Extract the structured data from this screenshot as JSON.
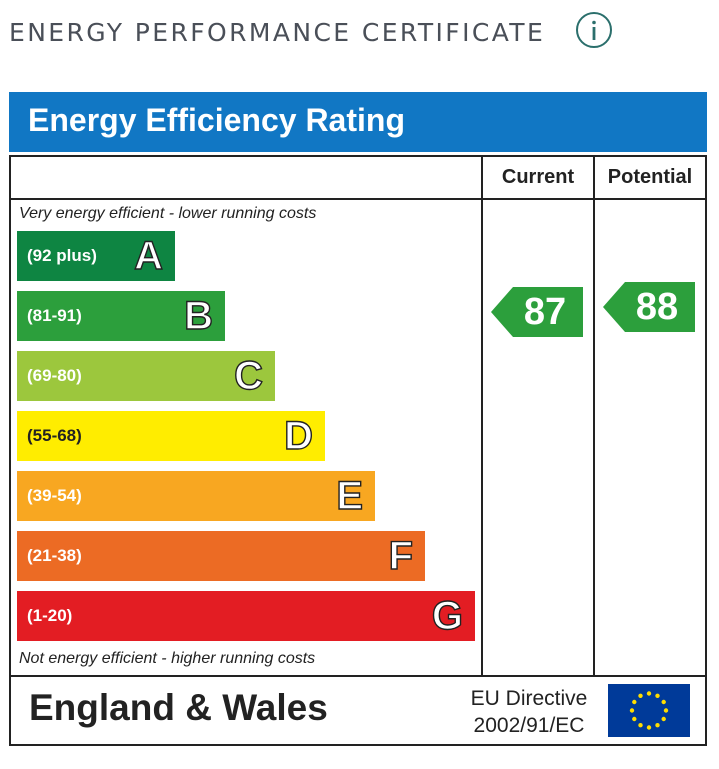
{
  "header": {
    "title": "ENERGY PERFORMANCE CERTIFICATE",
    "info_icon": "info-icon"
  },
  "epc": {
    "banner_title": "Energy Efficiency Rating",
    "columns": {
      "current": "Current",
      "potential": "Potential"
    },
    "top_note": "Very energy efficient - lower running costs",
    "bottom_note": "Not energy efficient - higher running costs",
    "bands": [
      {
        "range": "(92 plus)",
        "letter": "A",
        "color": "#0e8542"
      },
      {
        "range": "(81-91)",
        "letter": "B",
        "color": "#2c9f3c"
      },
      {
        "range": "(69-80)",
        "letter": "C",
        "color": "#9cc73d"
      },
      {
        "range": "(55-68)",
        "letter": "D",
        "color": "#ffed00"
      },
      {
        "range": "(39-54)",
        "letter": "E",
        "color": "#f8a721"
      },
      {
        "range": "(21-38)",
        "letter": "F",
        "color": "#ec6b24"
      },
      {
        "range": "(1-20)",
        "letter": "G",
        "color": "#e31d23"
      }
    ],
    "current_rating": {
      "value": "87",
      "color": "#2c9f3c"
    },
    "potential_rating": {
      "value": "88",
      "color": "#2c9f3c"
    },
    "region": "England & Wales",
    "directive_line1": "EU Directive",
    "directive_line2": "2002/91/EC",
    "flag_colors": {
      "background": "#003a99",
      "stars": "#ffdd00"
    }
  }
}
